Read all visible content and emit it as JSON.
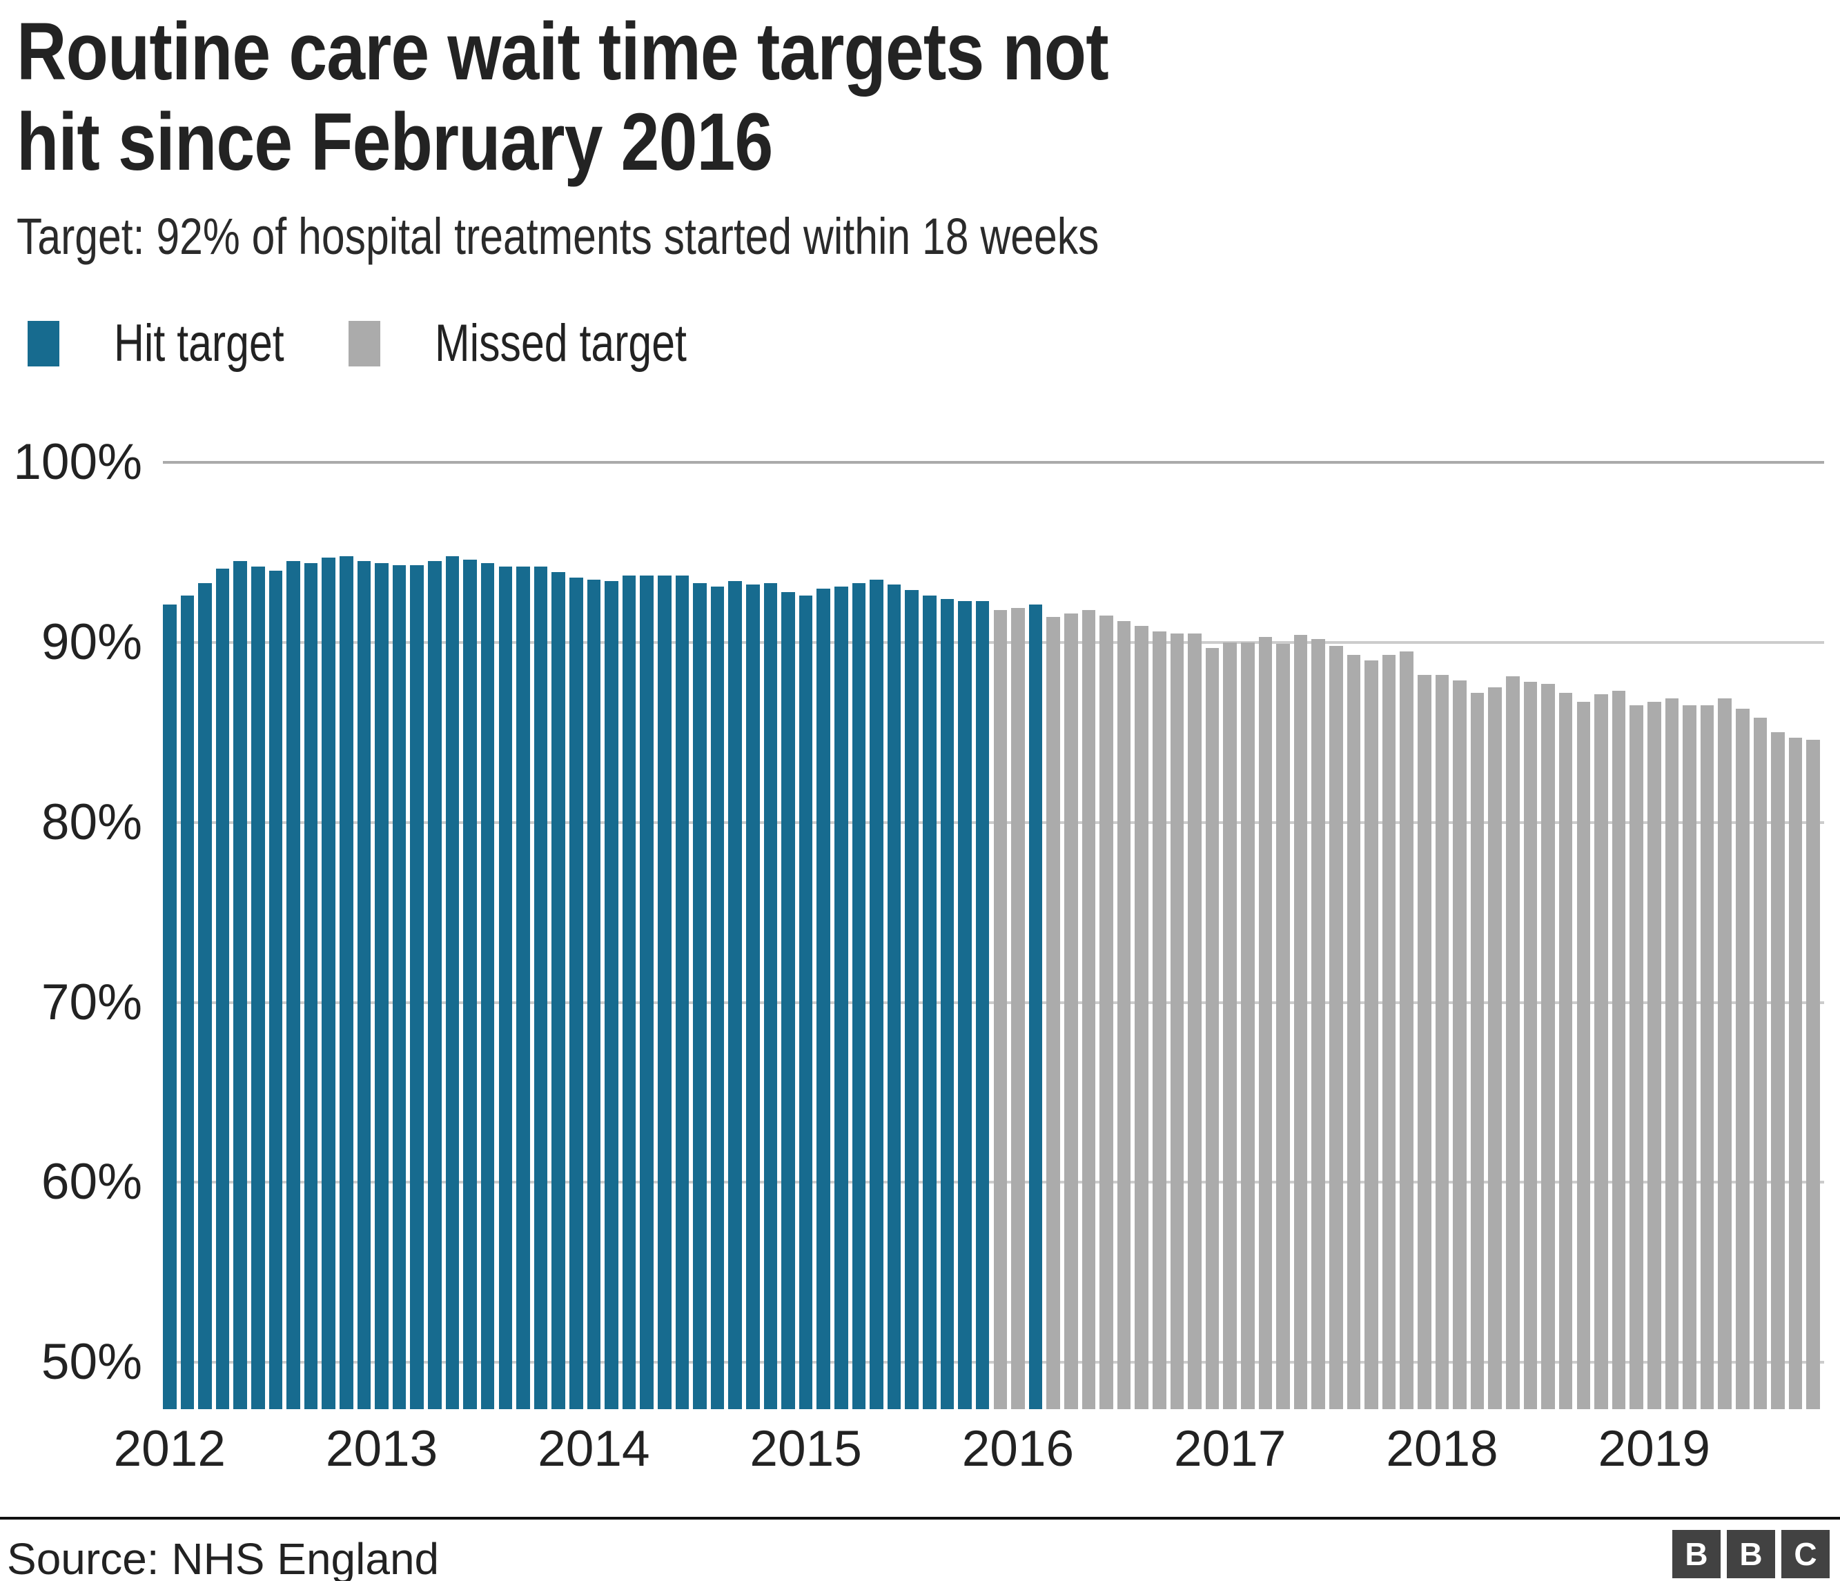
{
  "title": {
    "line1": "Routine care wait time targets not",
    "line2": "hit since February 2016"
  },
  "subtitle": "Target: 92% of hospital treatments started within 18 weeks",
  "legend": {
    "hit_label": "Hit target",
    "missed_label": "Missed target"
  },
  "footer": {
    "source": "Source: NHS England",
    "logo_letters": [
      "B",
      "B",
      "C"
    ]
  },
  "chart_data": {
    "type": "bar",
    "title": "Routine care wait time targets not hit since February 2016",
    "subtitle": "Target: 92% of hospital treatments started within 18 weeks",
    "target": 92,
    "unit": "%",
    "ylim": [
      47.4,
      100
    ],
    "ytick_labels": [
      "100%",
      "90%",
      "80%",
      "70%",
      "60%",
      "50%"
    ],
    "xtick_labels": [
      "2012",
      "2013",
      "2014",
      "2015",
      "2016",
      "2017",
      "2018",
      "2019"
    ],
    "legend": [
      {
        "name": "Hit target",
        "color": "#176B8F"
      },
      {
        "name": "Missed target",
        "color": "#ABABAB"
      }
    ],
    "grid": true,
    "hit_color": "#176B8F",
    "missed_color": "#ABABAB",
    "categories": [
      "Jan 2012",
      "Feb 2012",
      "Mar 2012",
      "Apr 2012",
      "May 2012",
      "Jun 2012",
      "Jul 2012",
      "Aug 2012",
      "Sep 2012",
      "Oct 2012",
      "Nov 2012",
      "Dec 2012",
      "Jan 2013",
      "Feb 2013",
      "Mar 2013",
      "Apr 2013",
      "May 2013",
      "Jun 2013",
      "Jul 2013",
      "Aug 2013",
      "Sep 2013",
      "Oct 2013",
      "Nov 2013",
      "Dec 2013",
      "Jan 2014",
      "Feb 2014",
      "Mar 2014",
      "Apr 2014",
      "May 2014",
      "Jun 2014",
      "Jul 2014",
      "Aug 2014",
      "Sep 2014",
      "Oct 2014",
      "Nov 2014",
      "Dec 2014",
      "Jan 2015",
      "Feb 2015",
      "Mar 2015",
      "Apr 2015",
      "May 2015",
      "Jun 2015",
      "Jul 2015",
      "Aug 2015",
      "Sep 2015",
      "Oct 2015",
      "Nov 2015",
      "Dec 2015",
      "Jan 2016",
      "Feb 2016",
      "Mar 2016",
      "Apr 2016",
      "May 2016",
      "Jun 2016",
      "Jul 2016",
      "Aug 2016",
      "Sep 2016",
      "Oct 2016",
      "Nov 2016",
      "Dec 2016",
      "Jan 2017",
      "Feb 2017",
      "Mar 2017",
      "Apr 2017",
      "May 2017",
      "Jun 2017",
      "Jul 2017",
      "Aug 2017",
      "Sep 2017",
      "Oct 2017",
      "Nov 2017",
      "Dec 2017",
      "Jan 2018",
      "Feb 2018",
      "Mar 2018",
      "Apr 2018",
      "May 2018",
      "Jun 2018",
      "Jul 2018",
      "Aug 2018",
      "Sep 2018",
      "Oct 2018",
      "Nov 2018",
      "Dec 2018",
      "Jan 2019",
      "Feb 2019",
      "Mar 2019",
      "Apr 2019",
      "May 2019",
      "Jun 2019",
      "Jul 2019",
      "Aug 2019",
      "Sep 2019",
      "Oct 2019"
    ],
    "values": [
      92.1,
      92.6,
      93.3,
      94.1,
      94.5,
      94.2,
      94.0,
      94.5,
      94.4,
      94.7,
      94.8,
      94.5,
      94.4,
      94.3,
      94.3,
      94.5,
      94.8,
      94.6,
      94.4,
      94.2,
      94.2,
      94.2,
      93.9,
      93.6,
      93.5,
      93.4,
      93.7,
      93.7,
      93.7,
      93.7,
      93.3,
      93.1,
      93.4,
      93.2,
      93.3,
      92.8,
      92.6,
      93.0,
      93.1,
      93.3,
      93.5,
      93.2,
      92.9,
      92.6,
      92.4,
      92.3,
      92.3,
      91.8,
      91.9,
      92.1,
      91.4,
      91.6,
      91.8,
      91.5,
      91.2,
      90.9,
      90.6,
      90.5,
      90.5,
      89.7,
      90.0,
      90.0,
      90.3,
      89.9,
      90.4,
      90.2,
      89.8,
      89.3,
      89.0,
      89.3,
      89.5,
      88.2,
      88.2,
      87.9,
      87.2,
      87.5,
      88.1,
      87.8,
      87.7,
      87.2,
      86.7,
      87.1,
      87.3,
      86.5,
      86.7,
      86.9,
      86.5,
      86.5,
      86.9,
      86.3,
      85.8,
      85.0,
      84.7,
      84.6
    ]
  },
  "colors": {
    "hit": "#176B8F",
    "missed": "#ABABAB",
    "gridline": "#cccccc",
    "gridline_top": "#aaaaaa",
    "text": "#222222"
  }
}
